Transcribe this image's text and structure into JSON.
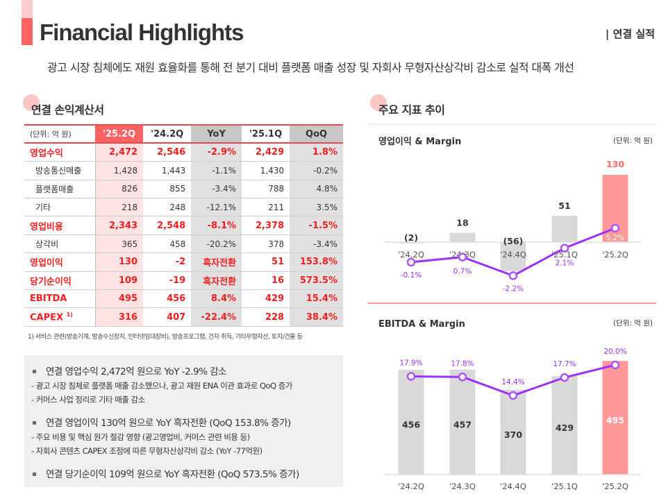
{
  "header": {
    "title": "Financial Highlights",
    "tag": "| 연결 실적",
    "subtitle": "광고 시장 침체에도 재원 효율화를 통해 전 분기 대비 플랫폼 매출 성장 및 자회사 무형자산상각비 감소로 실적 대폭 개선"
  },
  "income": {
    "title": "연결 손익계산서",
    "columns": [
      "(단위: 억 원)",
      "'25.2Q",
      "'24.2Q",
      "YoY",
      "'25.1Q",
      "QoQ"
    ],
    "rows": [
      {
        "label": "영업수익",
        "type": "major",
        "values": [
          "2,472",
          "2,546",
          "-2.9%",
          "2,429",
          "1.8%"
        ]
      },
      {
        "label": "방송통신매출",
        "type": "minor",
        "values": [
          "1,428",
          "1,443",
          "-1.1%",
          "1,430",
          "-0.2%"
        ]
      },
      {
        "label": "플랫폼매출",
        "type": "minor",
        "values": [
          "826",
          "855",
          "-3.4%",
          "788",
          "4.8%"
        ]
      },
      {
        "label": "기타",
        "type": "minor",
        "values": [
          "218",
          "248",
          "-12.1%",
          "211",
          "3.5%"
        ]
      },
      {
        "label": "영업비용",
        "type": "major",
        "values": [
          "2,343",
          "2,548",
          "-8.1%",
          "2,378",
          "-1.5%"
        ]
      },
      {
        "label": "상각비",
        "type": "minor",
        "values": [
          "365",
          "458",
          "-20.2%",
          "378",
          "-3.4%"
        ]
      },
      {
        "label": "영업이익",
        "type": "major",
        "values": [
          "130",
          "-2",
          "흑자전환",
          "51",
          "153.8%"
        ]
      },
      {
        "label": "당기순이익",
        "type": "major",
        "values": [
          "109",
          "-19",
          "흑자전환",
          "16",
          "573.5%"
        ]
      },
      {
        "label": "EBITDA",
        "type": "major",
        "values": [
          "495",
          "456",
          "8.4%",
          "429",
          "15.4%"
        ]
      },
      {
        "label": "CAPEX",
        "sup": "1)",
        "type": "major",
        "values": [
          "316",
          "407",
          "-22.4%",
          "228",
          "38.4%"
        ]
      }
    ],
    "footnote": "1)   서비스 관련(방송기계, 방송수신장치, 인터넷임대장비), 방송프로그램, 건자 취득, 기타무형자산, 토지/건물 등"
  },
  "summary": [
    {
      "head": "연결 영업수익 2,472억 원으로  YoY -2.9% 감소",
      "subs": [
        "- 광고 시장 침체로 플랫폼 매출 감소했으나, 광고 재원 ENA 이관 효과로 QoQ 증가",
        "- 커머스 사업 정리로 기타 매출 감소"
      ]
    },
    {
      "head": "연결 영업이익 130억 원으로  YoY 흑자전환 (QoQ 153.8% 증가)",
      "subs": [
        "- 주요 비용 및 핵심 원가 절감 영향 (광고영업비, 커머스 관련 비용 등)",
        "- 자회사 콘텐츠 CAPEX 조정에 따른 무형자산상각비 감소 (YoY -77억원)"
      ]
    },
    {
      "head": "연결 당기순이익 109억 원으로  YoY 흑자전환 (QoQ 573.5% 증가)",
      "subs": []
    }
  ],
  "trends": {
    "title": "주요 지표 추이"
  },
  "colors": {
    "accent": "#ff6262",
    "highlight_bar": "#ff9999",
    "bar": "#d9d9d9",
    "line": "#9b30ff",
    "value_red": "#f01e1e"
  },
  "chart_data": [
    {
      "type": "bar+line",
      "title": "영업이익 & Margin",
      "unit": "(단위: 억 원)",
      "categories": [
        "'24.2Q",
        "'24.3Q",
        "'24.4Q",
        "'25.1Q",
        "'25.2Q"
      ],
      "bar_values": [
        -2,
        18,
        -56,
        51,
        130
      ],
      "bar_labels": [
        "(2)",
        "18",
        "(56)",
        "51",
        "130"
      ],
      "line_values": [
        -0.1,
        0.7,
        -2.2,
        2.1,
        5.2
      ],
      "line_labels": [
        "-0.1%",
        "0.7%",
        "-2.2%",
        "2.1%",
        "5.2%"
      ]
    },
    {
      "type": "bar+line",
      "title": "EBITDA & Margin",
      "unit": "(단위: 억 원)",
      "categories": [
        "'24.2Q",
        "'24.3Q",
        "'24.4Q",
        "'25.1Q",
        "'25.2Q"
      ],
      "bar_values": [
        456,
        457,
        370,
        429,
        495
      ],
      "bar_labels": [
        "456",
        "457",
        "370",
        "429",
        "495"
      ],
      "line_values": [
        17.9,
        17.8,
        14.4,
        17.7,
        20.0
      ],
      "line_labels": [
        "17.9%",
        "17.8%",
        "14.4%",
        "17.7%",
        "20.0%"
      ]
    }
  ]
}
